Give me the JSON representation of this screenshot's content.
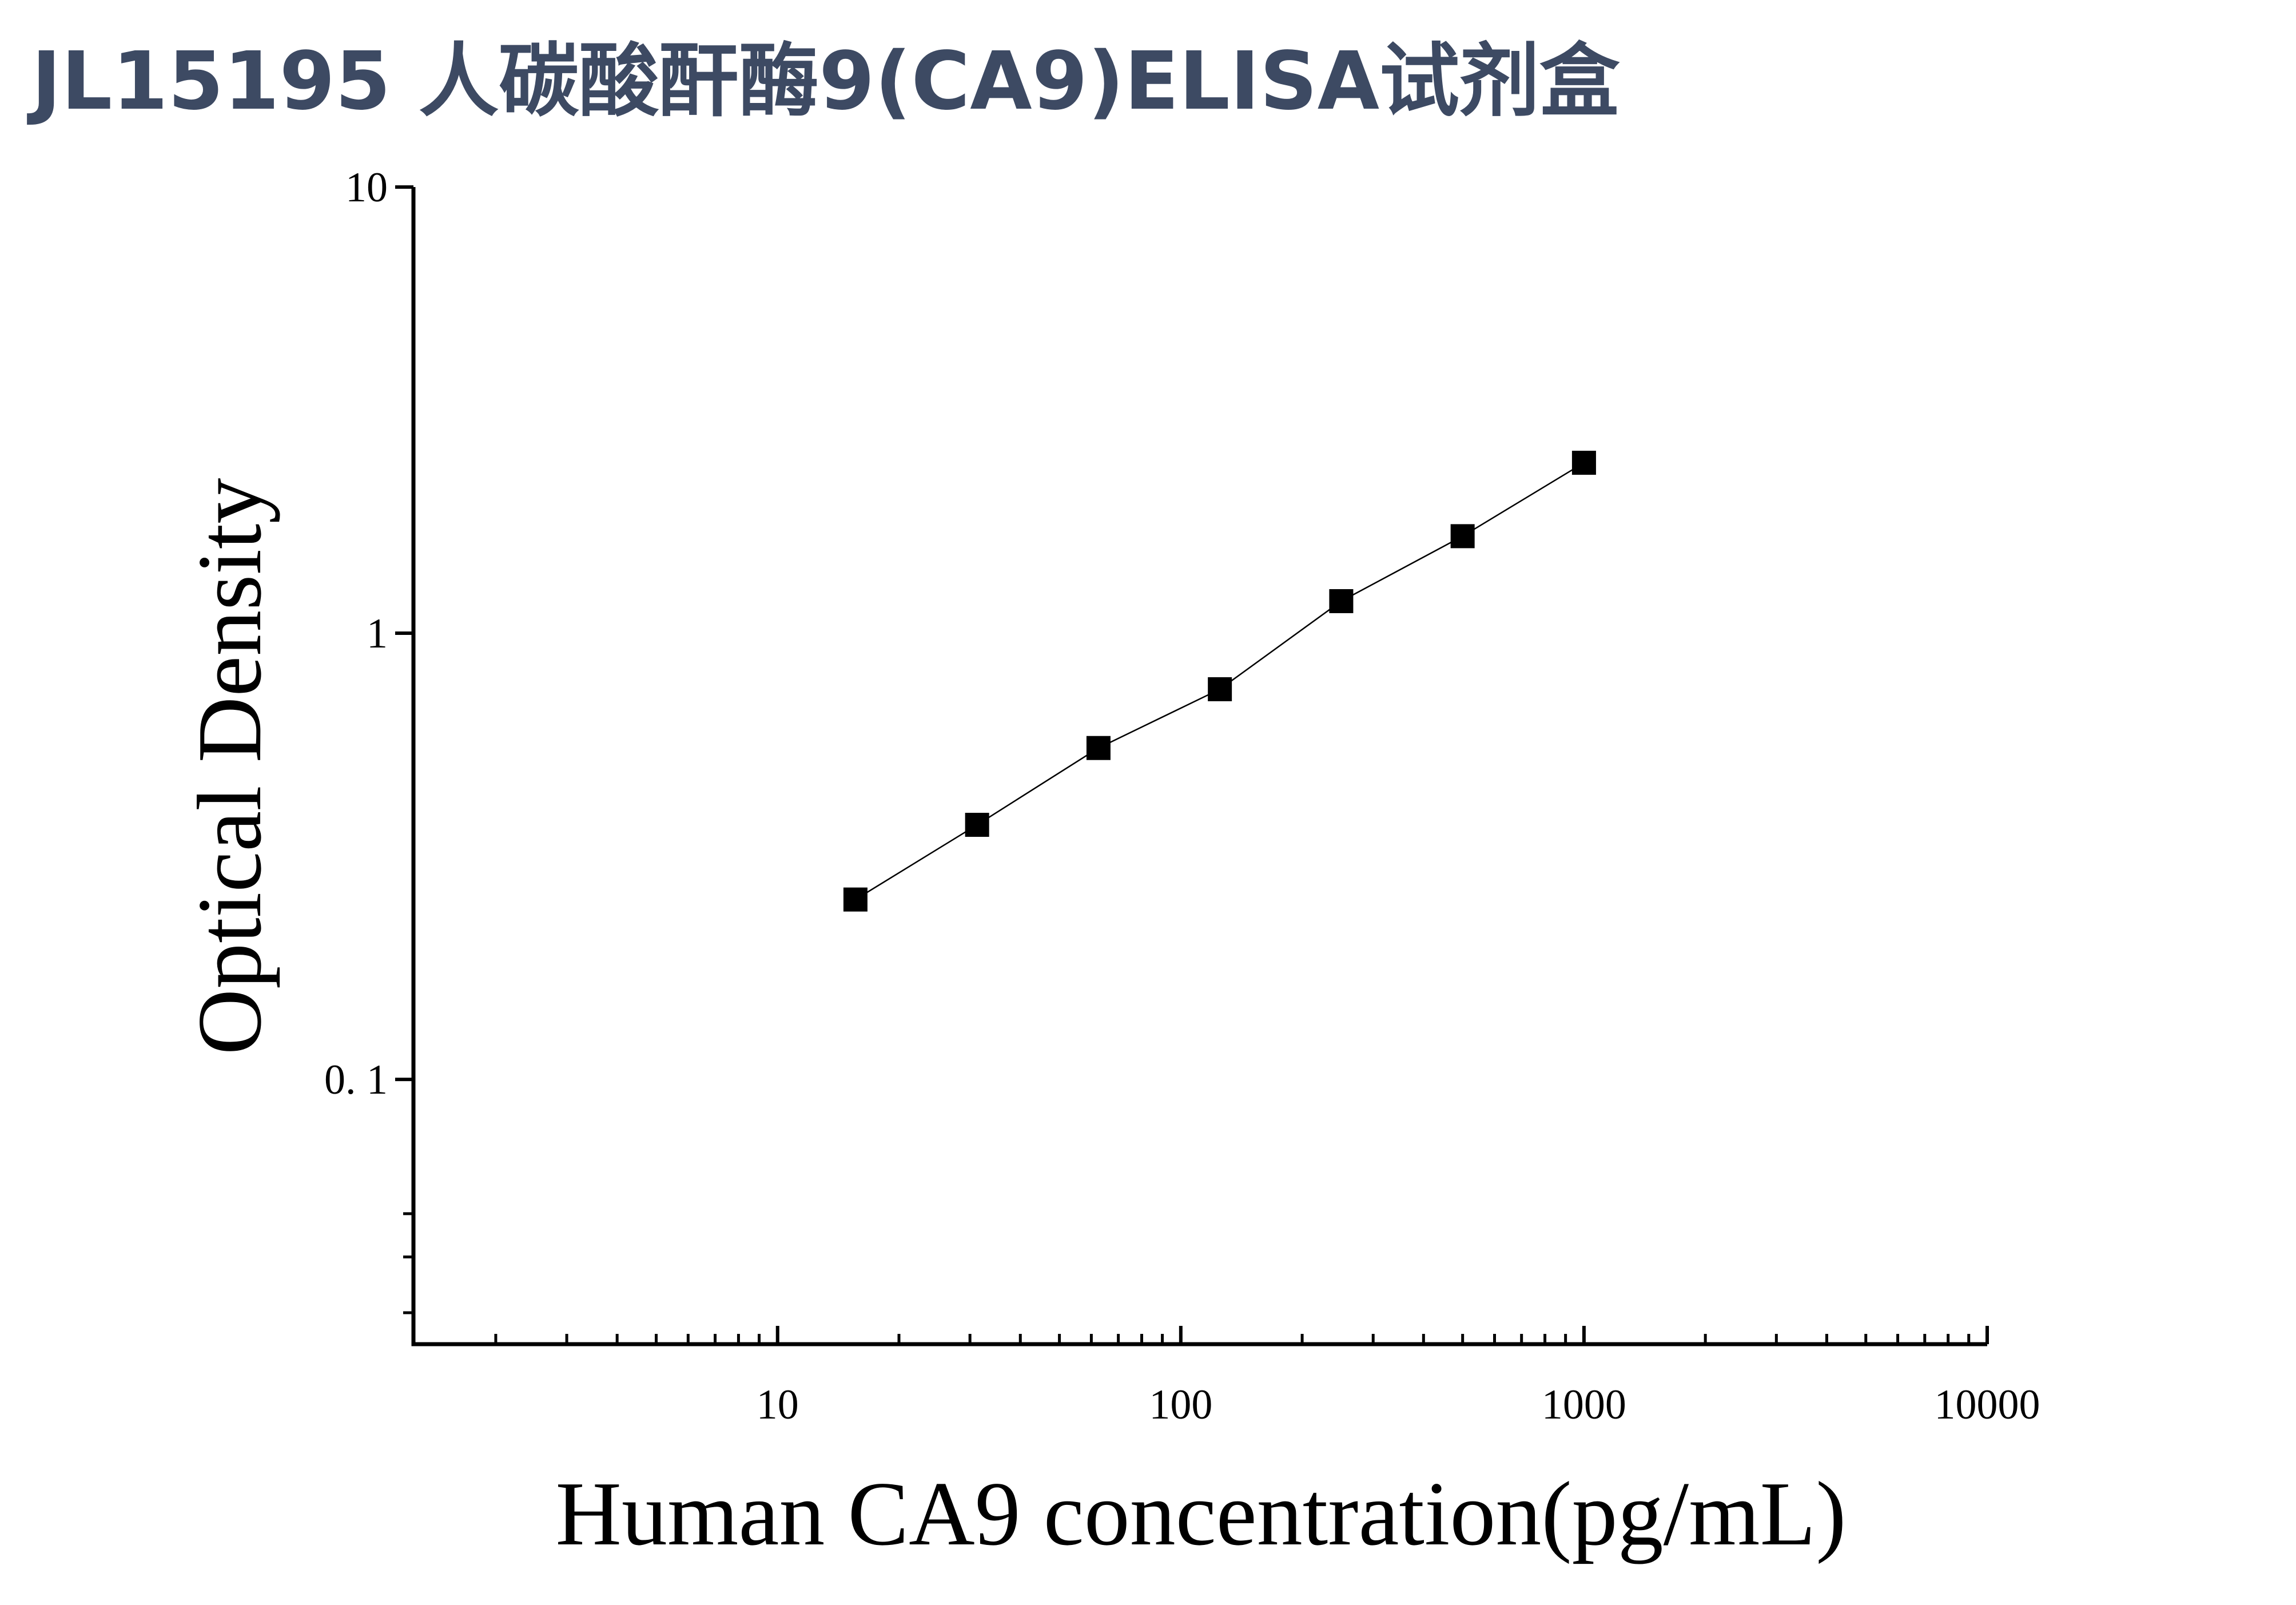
{
  "chart_data": {
    "type": "scatter",
    "title": "JL15195 人碳酸酐酶9(CA9)ELISA试剂盒",
    "x_label": "Human CA9 concentration(pg/mL)",
    "y_label": "Optical Density",
    "x_scale": "log",
    "y_scale": "log",
    "xlim": [
      1.25,
      10000
    ],
    "ylim": [
      0.0255,
      10
    ],
    "xticks": [
      10,
      100,
      1000,
      10000
    ],
    "yticks": [
      {
        "value": 0.1,
        "label": "0. 1"
      },
      1,
      10
    ],
    "xminorticks": [
      2,
      3,
      4,
      5,
      6,
      7,
      8,
      9,
      20,
      30,
      40,
      50,
      60,
      70,
      80,
      90,
      200,
      300,
      400,
      500,
      600,
      700,
      800,
      900,
      2000,
      3000,
      4000,
      5000,
      6000,
      7000,
      8000,
      9000
    ],
    "yminorticks": [
      0.03,
      0.04,
      0.05
    ],
    "series": [
      {
        "color": "#000000",
        "x": [
          15.6,
          31.25,
          62.5,
          125,
          250,
          500,
          1000
        ],
        "values": [
          0.253,
          0.372,
          0.553,
          0.749,
          1.18,
          1.65,
          2.41
        ]
      }
    ]
  }
}
